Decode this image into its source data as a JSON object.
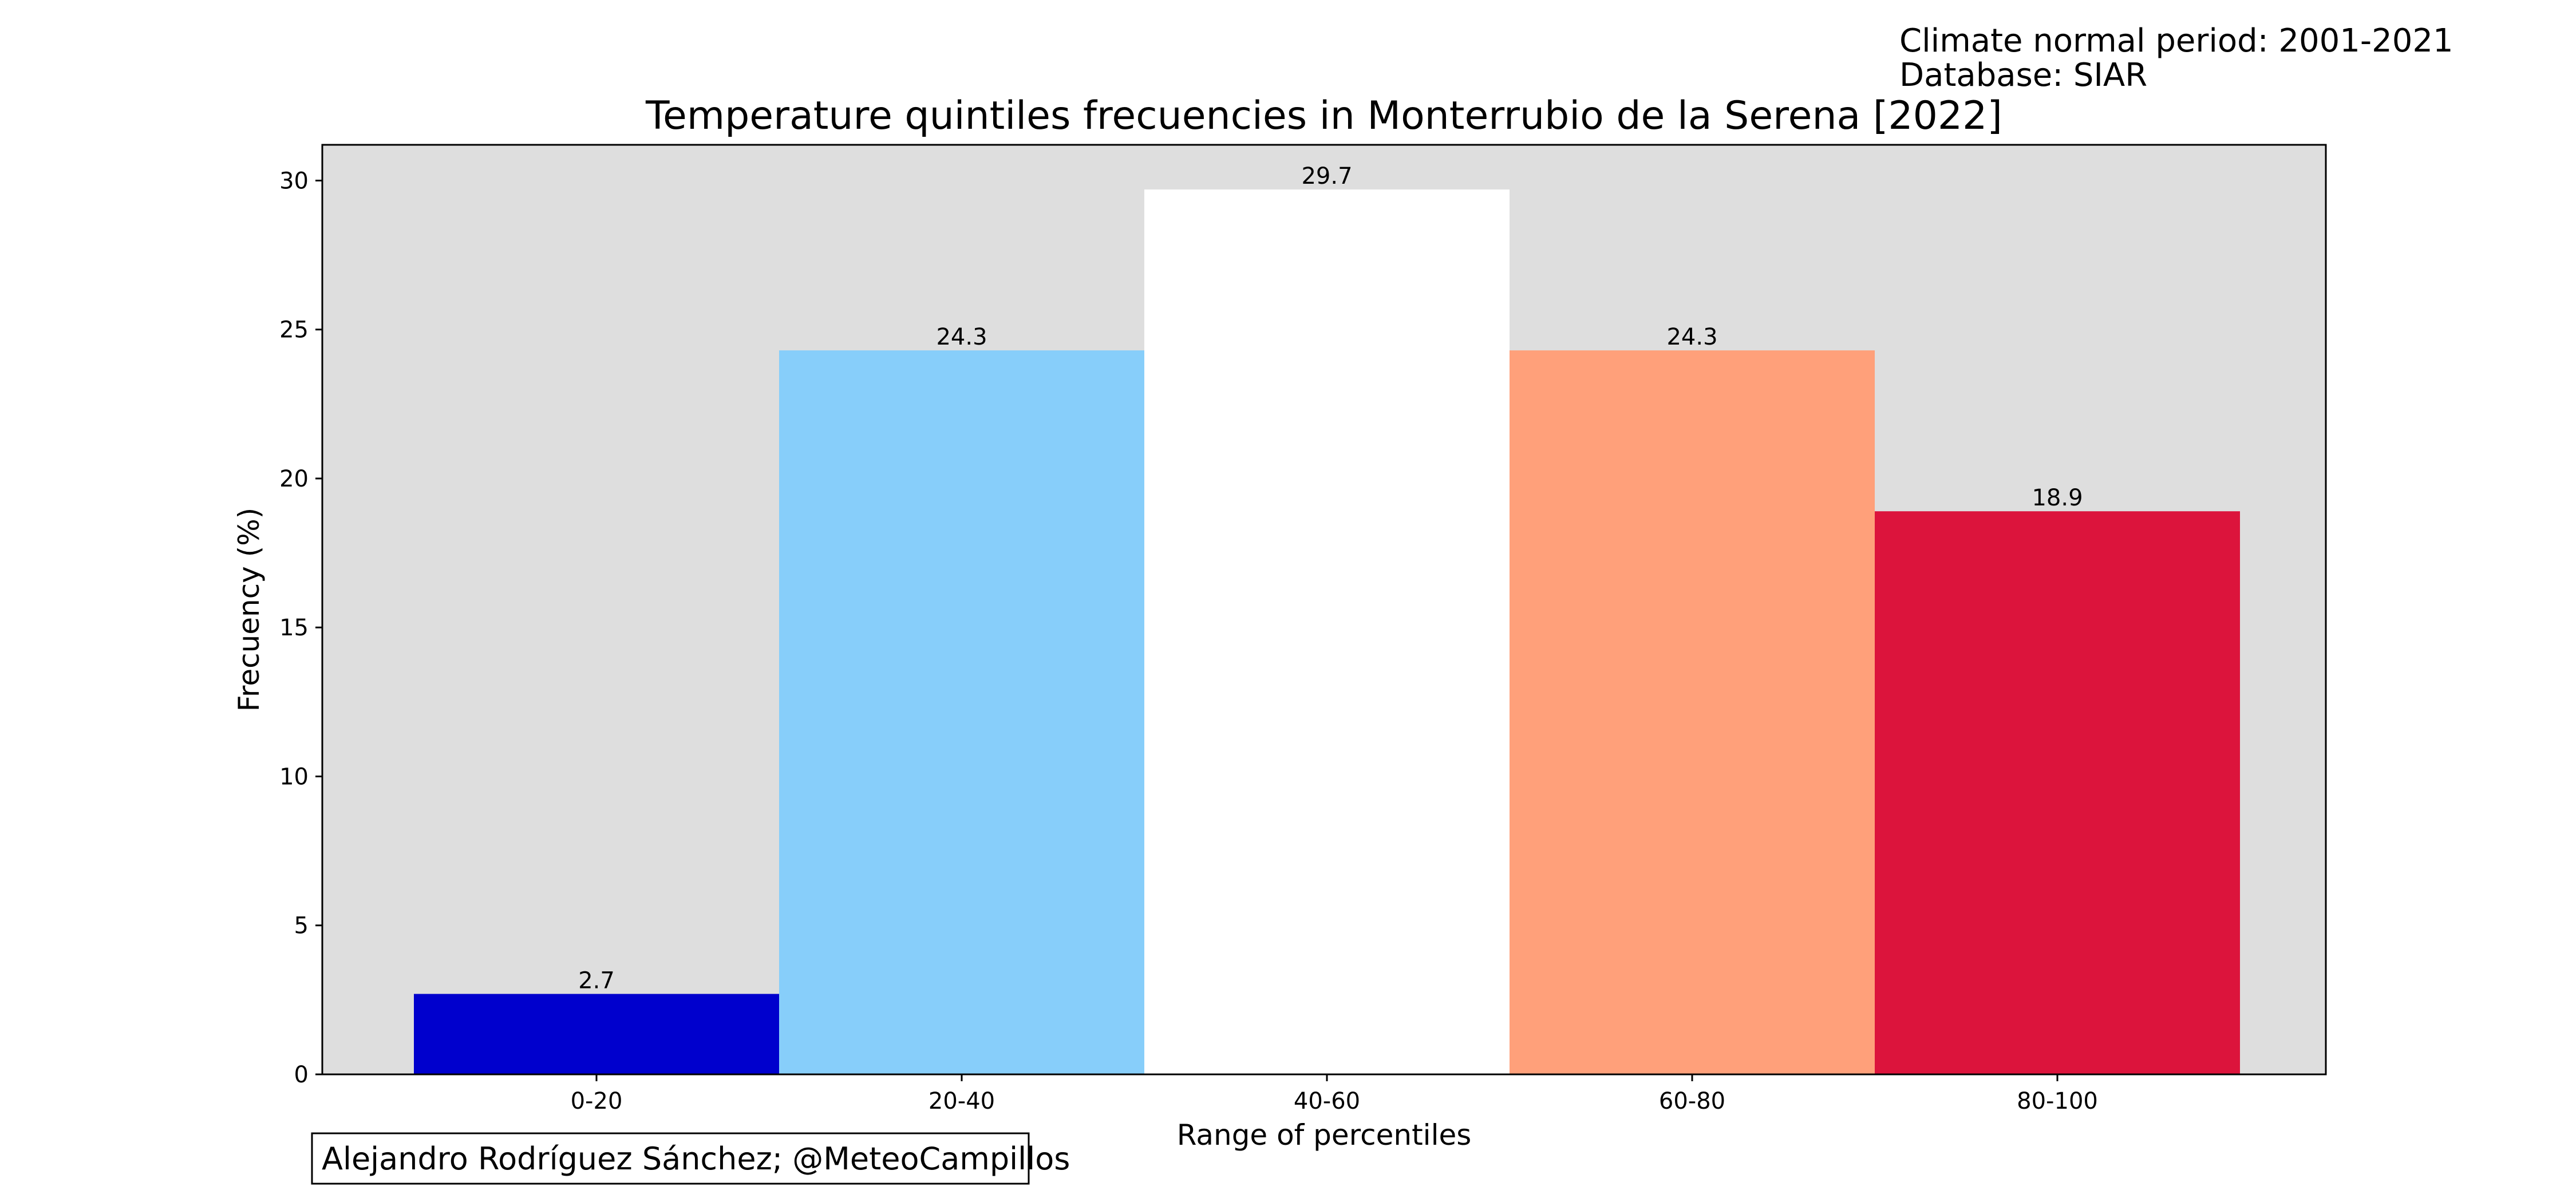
{
  "meta": {
    "climate_period": "Climate normal period: 2001-2021",
    "database": "Database: SIAR",
    "credit": "Alejandro Rodríguez Sánchez; @MeteoCampillos"
  },
  "chart_data": {
    "type": "bar",
    "title": "Temperature quintiles frecuencies in Monterrubio de la Serena [2022]",
    "xlabel": "Range of percentiles",
    "ylabel": "Frecuency (%)",
    "categories": [
      "0-20",
      "20-40",
      "40-60",
      "60-80",
      "80-100"
    ],
    "values": [
      2.7,
      24.3,
      29.7,
      24.3,
      18.9
    ],
    "value_labels": [
      "2.7",
      "24.3",
      "29.7",
      "24.3",
      "18.9"
    ],
    "colors": [
      "#0000cd",
      "#87cefa",
      "#ffffff",
      "#ffa07a",
      "#dc143c"
    ],
    "ylim": [
      0,
      31.2
    ],
    "yticks": [
      0,
      5,
      10,
      15,
      20,
      25,
      30
    ],
    "ytick_labels": [
      "0",
      "5",
      "10",
      "15",
      "20",
      "25",
      "30"
    ],
    "plot_background": "#dedede",
    "grid": false,
    "legend": "none"
  }
}
